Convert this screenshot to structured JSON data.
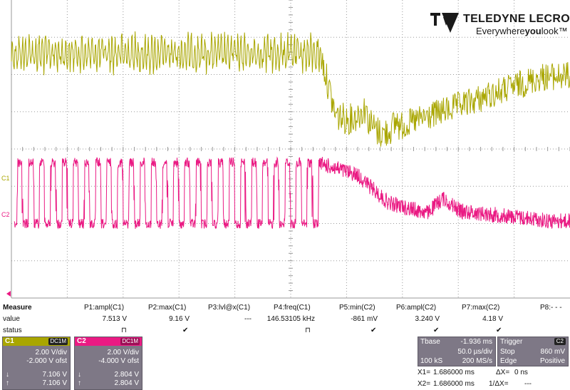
{
  "brand": {
    "name": "TELEDYNE LECROY",
    "tagline_pre": "Everywhere",
    "tagline_bold": "you",
    "tagline_post": "look",
    "tm": "™"
  },
  "colors": {
    "c1": "#a9a600",
    "c2": "#ea1a83",
    "grid": "#9a9a9a",
    "panel": "#7e7886"
  },
  "markers": {
    "c1": "C1",
    "c2": "C2"
  },
  "measure": {
    "row_header": "Measure",
    "value_label": "value",
    "status_label": "status",
    "params": [
      {
        "name": "P1:ampl(C1)",
        "value": "7.513 V",
        "status": "⊓"
      },
      {
        "name": "P2:max(C1)",
        "value": "9.16 V",
        "status": "✔"
      },
      {
        "name": "P3:lvl@x(C1)",
        "value": "---",
        "status": ""
      },
      {
        "name": "P4:freq(C1)",
        "value": "146.53105 kHz",
        "status": "⊓"
      },
      {
        "name": "P5:min(C2)",
        "value": "-861 mV",
        "status": "✔"
      },
      {
        "name": "P6:ampl(C2)",
        "value": "3.240 V",
        "status": "✔"
      },
      {
        "name": "P7:max(C2)",
        "value": "4.18 V",
        "status": "✔"
      },
      {
        "name": "P8:- - -",
        "value": "",
        "status": ""
      }
    ]
  },
  "channels": [
    {
      "name": "C1",
      "coupling": "DC1M",
      "vdiv": "2.00 V/div",
      "offset": "-2.000 V ofst",
      "down": "7.106 V",
      "up": "7.106 V",
      "down_icon": "↓",
      "up_icon": "↑"
    },
    {
      "name": "C2",
      "coupling": "DC1M",
      "vdiv": "2.00 V/div",
      "offset": "-4.000 V ofst",
      "down": "2.804 V",
      "up": "2.804 V",
      "down_icon": "↓",
      "up_icon": "↑"
    }
  ],
  "timebase": {
    "label": "Tbase",
    "delay": "-1.936 ms",
    "tdiv": "50.0 µs/div",
    "samples": "100 kS",
    "rate": "200 MS/s"
  },
  "trigger": {
    "label": "Trigger",
    "source": "C2",
    "mode": "Stop",
    "level": "860 mV",
    "type": "Edge",
    "slope": "Positive"
  },
  "cursors": {
    "x1_label": "X1=",
    "x1": "1.686000 ms",
    "dx_label": "ΔX=",
    "dx": "0 ns",
    "x2_label": "X2=",
    "x2": "1.686000 ms",
    "inv_label": "1/ΔX=",
    "inv": "---"
  }
}
